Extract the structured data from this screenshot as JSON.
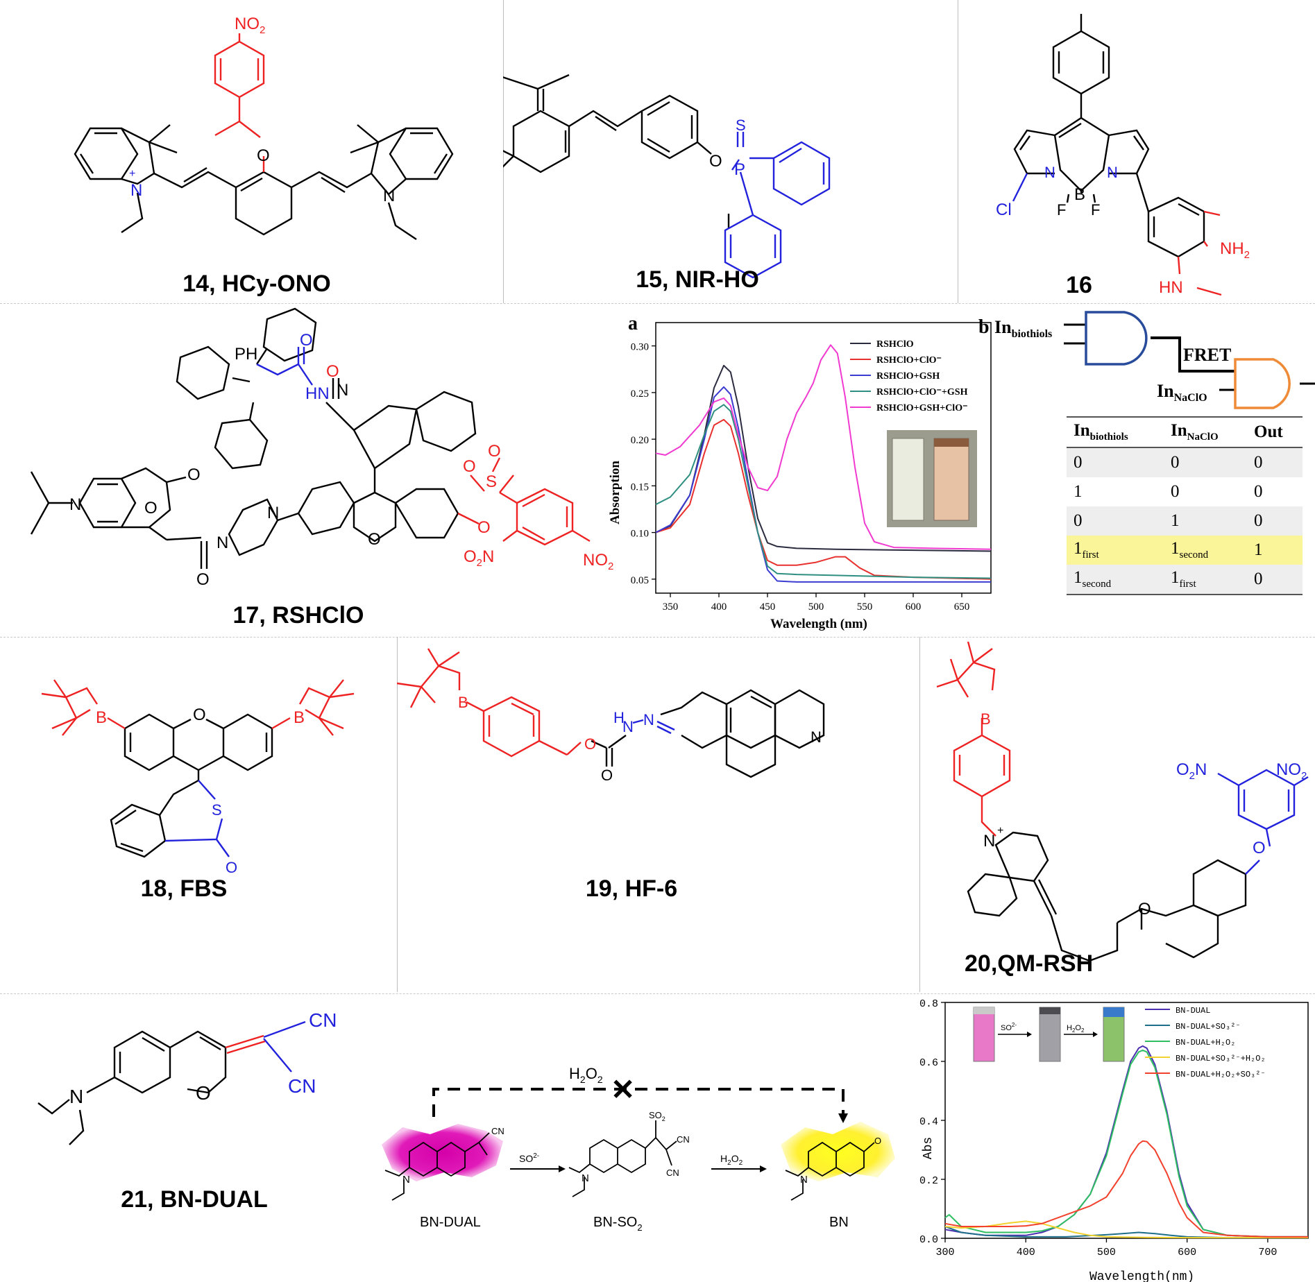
{
  "compounds": {
    "c14": "14, HCy-ONO",
    "c15": "15, NIR-HO",
    "c16": "16",
    "c17": "17, RSHClO",
    "c18": "18, FBS",
    "c19": "19, HF-6",
    "c20": "20,QM-RSH",
    "c21": "21, BN-DUAL"
  },
  "atoms": {
    "no2": "NO",
    "two": "2",
    "o": "O",
    "n": "N",
    "plus": "+",
    "s": "S",
    "p": "P",
    "b": "B",
    "f": "F",
    "cl": "Cl",
    "nh2": "NH",
    "hn": "HN",
    "ph": "PH",
    "hnn": "HN",
    "cn": "CN",
    "so3h": "SO",
    "h": "H"
  },
  "panel_a": {
    "letter": "a",
    "xlabel": "Wavelength (nm)",
    "ylabel": "Absorption",
    "legend": [
      "RSHClO",
      "RSHClO+ClO⁻",
      "RSHClO+GSH",
      "RSHClO+ClO⁻+GSH",
      "RSHClO+GSH+ClO⁻"
    ],
    "colors": [
      "#2b2b40",
      "#e8302e",
      "#3b3bd1",
      "#2e8f80",
      "#f03ad0"
    ],
    "xticks": [
      "350",
      "400",
      "450",
      "500",
      "550",
      "600",
      "650"
    ],
    "yticks": [
      "0.05",
      "0.10",
      "0.15",
      "0.20",
      "0.25",
      "0.30"
    ]
  },
  "panel_b": {
    "letter": "b",
    "in1": "In",
    "in1_sub": "biothiols",
    "in2": "In",
    "in2_sub": "NaClO",
    "fret": "FRET",
    "headers": [
      "In",
      "In",
      "Out"
    ],
    "header_subs": [
      "biothiols",
      "NaClO",
      ""
    ],
    "rows": [
      [
        "0",
        "0",
        "0"
      ],
      [
        "1",
        "0",
        "0"
      ],
      [
        "0",
        "1",
        "0"
      ],
      [
        "1",
        "1",
        "1"
      ],
      [
        "1",
        "1",
        "0"
      ]
    ],
    "row_subs": [
      [
        "",
        "",
        ""
      ],
      [
        "",
        "",
        ""
      ],
      [
        "",
        "",
        ""
      ],
      [
        "first",
        "second",
        ""
      ],
      [
        "second",
        "first",
        ""
      ]
    ]
  },
  "scheme21": {
    "h2o2": "H",
    "h2o2_o": "O",
    "so3": "SO",
    "so3_charge": "2-",
    "left": "BN-DUAL",
    "mid": "BN-SO",
    "right": "BN",
    "x_mark": "✕"
  },
  "panel_c": {
    "xlabel": "Wavelength(nm)",
    "ylabel": "Abs",
    "xticks": [
      "300",
      "400",
      "500",
      "600",
      "700"
    ],
    "yticks": [
      "0.0",
      "0.2",
      "0.4",
      "0.6",
      "0.8"
    ],
    "legend": [
      "BN-DUAL",
      "BN-DUAL+SO₃²⁻",
      "BN-DUAL+H₂O₂",
      "BN-DUAL+SO₃²⁻+H₂O₂",
      "BN-DUAL+H₂O₂+SO₃²⁻"
    ],
    "colors": [
      "#4b2fb0",
      "#1f6f8b",
      "#2fbf62",
      "#f2d22e",
      "#f2412d"
    ],
    "inset_so3": "SO",
    "inset_h2o2": "H"
  },
  "chart_data": [
    {
      "type": "line",
      "title": "",
      "xlabel": "Wavelength (nm)",
      "ylabel": "Absorption",
      "xlim": [
        335,
        680
      ],
      "ylim": [
        0.035,
        0.325
      ],
      "series": [
        {
          "name": "RSHClO",
          "x": [
            335,
            350,
            370,
            385,
            395,
            405,
            412,
            420,
            430,
            440,
            450,
            460,
            480,
            520,
            600,
            680
          ],
          "y": [
            0.1,
            0.107,
            0.14,
            0.205,
            0.255,
            0.279,
            0.272,
            0.235,
            0.17,
            0.115,
            0.089,
            0.085,
            0.083,
            0.082,
            0.081,
            0.08
          ]
        },
        {
          "name": "RSHClO+ClO⁻",
          "x": [
            335,
            350,
            370,
            385,
            395,
            405,
            412,
            420,
            430,
            440,
            450,
            460,
            480,
            500,
            520,
            530,
            545,
            560,
            600,
            680
          ],
          "y": [
            0.1,
            0.105,
            0.13,
            0.185,
            0.215,
            0.221,
            0.214,
            0.185,
            0.14,
            0.1,
            0.07,
            0.065,
            0.065,
            0.068,
            0.074,
            0.074,
            0.062,
            0.054,
            0.052,
            0.05
          ]
        },
        {
          "name": "RSHClO+GSH",
          "x": [
            335,
            350,
            370,
            385,
            395,
            405,
            412,
            420,
            430,
            440,
            450,
            460,
            480,
            520,
            600,
            680
          ],
          "y": [
            0.1,
            0.108,
            0.14,
            0.2,
            0.245,
            0.256,
            0.248,
            0.212,
            0.155,
            0.1,
            0.06,
            0.048,
            0.047,
            0.047,
            0.047,
            0.047
          ]
        },
        {
          "name": "RSHClO+ClO⁻+GSH",
          "x": [
            335,
            350,
            370,
            385,
            395,
            405,
            412,
            420,
            430,
            440,
            450,
            460,
            480,
            520,
            600,
            680
          ],
          "y": [
            0.13,
            0.138,
            0.162,
            0.205,
            0.23,
            0.237,
            0.23,
            0.2,
            0.15,
            0.1,
            0.064,
            0.056,
            0.055,
            0.054,
            0.052,
            0.051
          ]
        },
        {
          "name": "RSHClO+GSH+ClO⁻",
          "x": [
            335,
            345,
            360,
            380,
            395,
            405,
            412,
            420,
            430,
            440,
            450,
            460,
            470,
            480,
            490,
            497,
            505,
            515,
            522,
            530,
            540,
            550,
            560,
            580,
            620,
            680
          ],
          "y": [
            0.185,
            0.183,
            0.192,
            0.215,
            0.24,
            0.244,
            0.236,
            0.205,
            0.17,
            0.148,
            0.145,
            0.16,
            0.2,
            0.228,
            0.246,
            0.26,
            0.285,
            0.301,
            0.292,
            0.245,
            0.17,
            0.11,
            0.09,
            0.084,
            0.083,
            0.082
          ]
        }
      ]
    },
    {
      "type": "line",
      "title": "",
      "xlabel": "Wavelength(nm)",
      "ylabel": "Abs",
      "xlim": [
        300,
        750
      ],
      "ylim": [
        0.0,
        0.8
      ],
      "series": [
        {
          "name": "BN-DUAL",
          "x": [
            300,
            320,
            350,
            380,
            400,
            420,
            440,
            460,
            480,
            500,
            520,
            530,
            540,
            545,
            550,
            560,
            575,
            590,
            600,
            620,
            650,
            700,
            750
          ],
          "y": [
            0.03,
            0.02,
            0.01,
            0.01,
            0.01,
            0.02,
            0.04,
            0.08,
            0.15,
            0.29,
            0.5,
            0.6,
            0.645,
            0.652,
            0.645,
            0.59,
            0.43,
            0.22,
            0.12,
            0.03,
            0.01,
            0.005,
            0.005
          ]
        },
        {
          "name": "BN-DUAL+SO₃²⁻",
          "x": [
            300,
            320,
            350,
            400,
            450,
            500,
            520,
            540,
            560,
            580,
            600,
            650,
            750
          ],
          "y": [
            0.04,
            0.02,
            0.01,
            0.005,
            0.005,
            0.012,
            0.016,
            0.02,
            0.016,
            0.01,
            0.005,
            0.002,
            0.002
          ]
        },
        {
          "name": "BN-DUAL+H₂O₂",
          "x": [
            300,
            305,
            320,
            350,
            380,
            400,
            420,
            440,
            460,
            480,
            500,
            520,
            530,
            540,
            545,
            550,
            560,
            575,
            590,
            600,
            620,
            650,
            700,
            750
          ],
          "y": [
            0.07,
            0.08,
            0.04,
            0.02,
            0.02,
            0.02,
            0.025,
            0.04,
            0.08,
            0.15,
            0.28,
            0.49,
            0.59,
            0.632,
            0.638,
            0.632,
            0.58,
            0.42,
            0.21,
            0.11,
            0.03,
            0.01,
            0.005,
            0.005
          ]
        },
        {
          "name": "BN-DUAL+SO₃²⁻+H₂O₂",
          "x": [
            300,
            320,
            350,
            380,
            400,
            420,
            440,
            460,
            480,
            500,
            550,
            600,
            750
          ],
          "y": [
            0.04,
            0.035,
            0.04,
            0.052,
            0.058,
            0.05,
            0.035,
            0.02,
            0.01,
            0.005,
            0.003,
            0.002,
            0.002
          ]
        },
        {
          "name": "BN-DUAL+H₂O₂+SO₃²⁻",
          "x": [
            300,
            320,
            350,
            380,
            400,
            420,
            440,
            460,
            480,
            500,
            520,
            530,
            540,
            545,
            550,
            560,
            575,
            590,
            600,
            620,
            650,
            700,
            750
          ],
          "y": [
            0.05,
            0.04,
            0.04,
            0.04,
            0.042,
            0.05,
            0.07,
            0.09,
            0.11,
            0.14,
            0.22,
            0.28,
            0.32,
            0.33,
            0.328,
            0.3,
            0.22,
            0.12,
            0.07,
            0.02,
            0.01,
            0.005,
            0.005
          ]
        }
      ]
    }
  ]
}
